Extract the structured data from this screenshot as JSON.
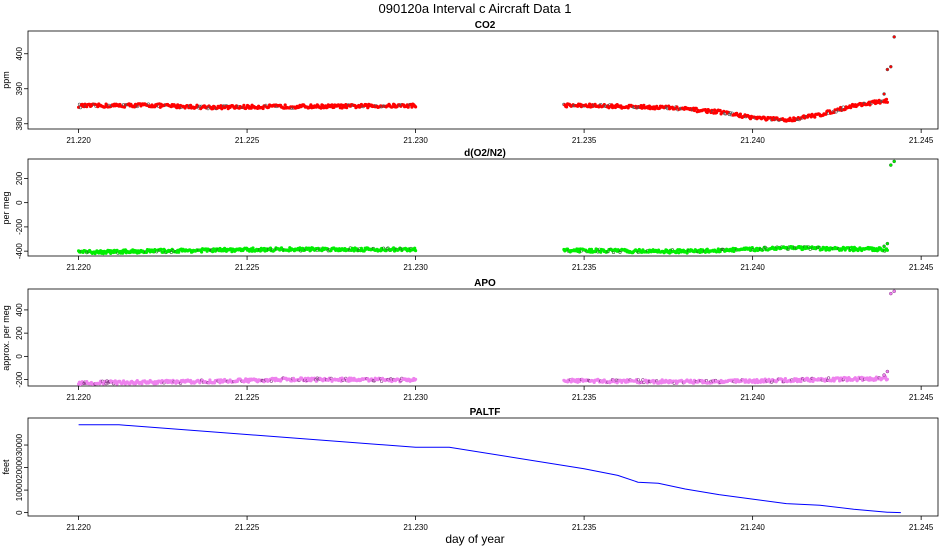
{
  "title": "090120a   Interval c Aircraft Data 1",
  "xlabel": "day of year",
  "chart_data": [
    {
      "type": "scatter",
      "title": "CO2",
      "ylabel": "ppm",
      "xlim": [
        21.2185,
        21.2455
      ],
      "ylim": [
        378.5,
        406.5
      ],
      "x_ticks": [
        "21.220",
        "21.225",
        "21.230",
        "21.235",
        "21.240",
        "21.245"
      ],
      "y_ticks": [
        380,
        390,
        400
      ],
      "colors": {
        "main": "#ff0000",
        "alt": "#555555"
      },
      "segments": [
        {
          "x": [
            21.22,
            21.222,
            21.224,
            21.226,
            21.228,
            21.23
          ],
          "y": [
            385.1,
            385.3,
            384.7,
            384.9,
            385.0,
            385.2
          ]
        },
        {
          "x": [
            21.2344,
            21.236,
            21.2375,
            21.239,
            21.24,
            21.241,
            21.242,
            21.243,
            21.244
          ],
          "y": [
            385.3,
            385.0,
            384.6,
            383.4,
            381.8,
            381.0,
            382.6,
            385.2,
            386.6
          ]
        }
      ],
      "spikes": {
        "x": [
          21.2439,
          21.244,
          21.2441,
          21.2442
        ],
        "y": [
          388.5,
          395.5,
          396.3,
          404.8
        ]
      }
    },
    {
      "type": "scatter",
      "title": "d(O2/N2)",
      "ylabel": "per meg",
      "xlim": [
        21.2185,
        21.2455
      ],
      "ylim": [
        -440,
        360
      ],
      "x_ticks": [
        "21.220",
        "21.225",
        "21.230",
        "21.235",
        "21.240",
        "21.245"
      ],
      "y_ticks": [
        -400,
        -200,
        0,
        200
      ],
      "colors": {
        "main": "#00ee00",
        "alt": "#1f7a1f"
      },
      "segments": [
        {
          "x": [
            21.22,
            21.222,
            21.224,
            21.226,
            21.228,
            21.23
          ],
          "y": [
            -410,
            -400,
            -392,
            -385,
            -384,
            -388
          ]
        },
        {
          "x": [
            21.2344,
            21.236,
            21.238,
            21.24,
            21.241,
            21.242,
            21.244
          ],
          "y": [
            -393,
            -398,
            -402,
            -385,
            -370,
            -380,
            -385
          ]
        }
      ],
      "spikes": {
        "x": [
          21.2439,
          21.244,
          21.2441,
          21.2442
        ],
        "y": [
          -360,
          -338,
          310,
          340
        ]
      }
    },
    {
      "type": "scatter",
      "title": "APO",
      "ylabel": "approx. per meg",
      "xlim": [
        21.2185,
        21.2455
      ],
      "ylim": [
        -255,
        580
      ],
      "x_ticks": [
        "21.220",
        "21.225",
        "21.230",
        "21.235",
        "21.240",
        "21.245"
      ],
      "y_ticks": [
        -200,
        0,
        200,
        400
      ],
      "colors": {
        "main": "#ee82ee",
        "alt": "#8b3a8b"
      },
      "segments": [
        {
          "x": [
            21.22,
            21.222,
            21.224,
            21.226,
            21.228,
            21.23
          ],
          "y": [
            -228,
            -222,
            -215,
            -200,
            -200,
            -205
          ]
        },
        {
          "x": [
            21.2344,
            21.236,
            21.238,
            21.24,
            21.242,
            21.244
          ],
          "y": [
            -210,
            -213,
            -218,
            -212,
            -200,
            -190
          ]
        }
      ],
      "spikes": {
        "x": [
          21.2439,
          21.244,
          21.2441,
          21.2442
        ],
        "y": [
          -160,
          -130,
          540,
          560
        ]
      }
    },
    {
      "type": "line",
      "title": "PALTF",
      "ylabel": "feet",
      "xlim": [
        21.2185,
        21.2455
      ],
      "ylim": [
        -1500,
        42000
      ],
      "x_ticks": [
        "21.220",
        "21.225",
        "21.230",
        "21.235",
        "21.240",
        "21.245"
      ],
      "y_ticks": [
        0,
        10000,
        20000,
        30000
      ],
      "colors": {
        "main": "#0000ff"
      },
      "x": [
        21.22,
        21.2212,
        21.23,
        21.231,
        21.235,
        21.236,
        21.2366,
        21.2372,
        21.238,
        21.239,
        21.24,
        21.241,
        21.2417,
        21.242,
        21.243,
        21.244,
        21.2444
      ],
      "y": [
        39000,
        39000,
        29000,
        29000,
        19500,
        16500,
        13500,
        13000,
        10500,
        8000,
        6000,
        4000,
        3500,
        3300,
        1500,
        200,
        0
      ]
    }
  ]
}
